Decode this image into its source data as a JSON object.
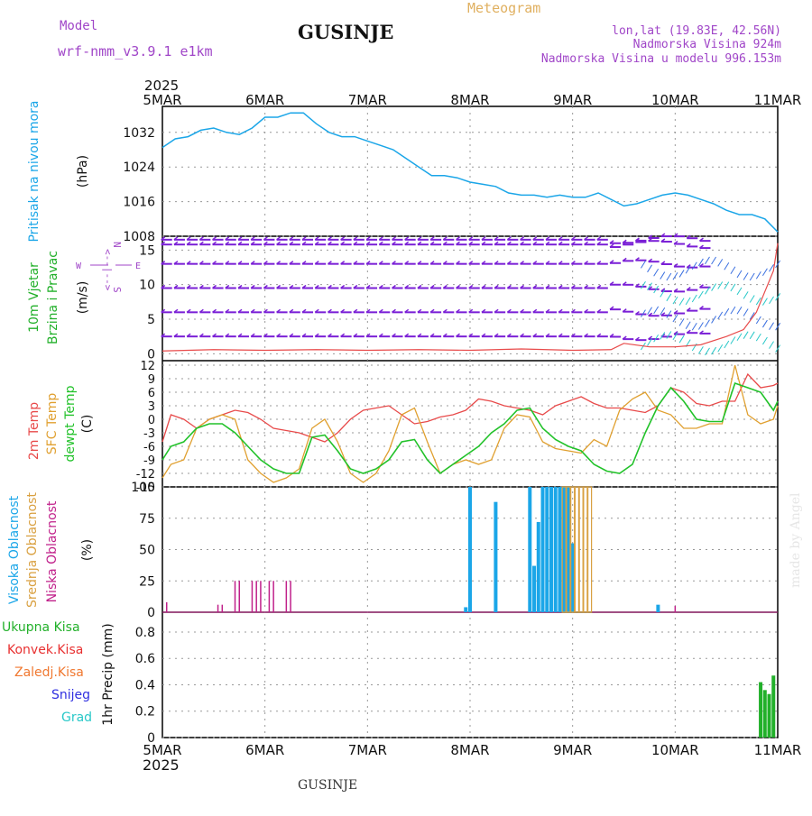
{
  "header": {
    "model_label": "Model",
    "model_name": "wrf-nmm_v3.9.1 e1km",
    "station_title": "GUSINJE",
    "app_title": "Meteogram",
    "location": "lon,lat (19.83E, 42.56N)",
    "elevation": "Nadmorska Visina 924m",
    "model_elevation": "Nadmorska Visina u modelu 996.153m"
  },
  "footer": {
    "station": "GUSINJE",
    "credit": "made by Angel"
  },
  "colors": {
    "pressure": "#1ba6e8",
    "wind_green": "#22b02a",
    "wind_dir": "#a046c8",
    "purple": "#7a1fd6",
    "temp2m": "#e84a4a",
    "sfc": "#e0a030",
    "dew": "#22c22a",
    "high_cloud": "#1ba6e8",
    "mid_cloud": "#d9a040",
    "low_cloud": "#c0208a",
    "grad": "#28c8c8",
    "snow": "#3030e0",
    "conv": "#e83030",
    "frozen": "#f07830"
  },
  "time_axis": {
    "year": "2025",
    "ticks": [
      "5MAR",
      "6MAR",
      "7MAR",
      "8MAR",
      "9MAR",
      "10MAR",
      "11MAR"
    ]
  },
  "panels": {
    "pressure": {
      "label": "Pritisak na nivou mora",
      "unit": "(hPa)",
      "ticks": [
        "1008",
        "1016",
        "1024",
        "1032"
      ]
    },
    "wind": {
      "label1": "10m Vjetar",
      "label2": "Brzina i Pravac",
      "unit": "(m/s)",
      "ticks": [
        "0",
        "5",
        "10",
        "15"
      ],
      "compass": {
        "n": "N",
        "s": "S",
        "w": "W",
        "e": "E",
        "arrows": "<--|-->"
      }
    },
    "temperature": {
      "label1": "2m Temp",
      "label2": "SFC Temp",
      "label3": "dewpt Temp",
      "unit": "(C)",
      "ticks": [
        "12",
        "9",
        "6",
        "3",
        "0",
        "-3",
        "-6",
        "-9",
        "-12",
        "-15"
      ]
    },
    "clouds": {
      "label1": "Visoka Oblacnost",
      "label2": "Srednja Oblacnost",
      "label3": "Niska Oblacnost",
      "unit": "(%)",
      "ticks": [
        "100",
        "75",
        "50",
        "25",
        "0"
      ]
    },
    "precip": {
      "labels": [
        "Ukupna Kisa",
        "Konvek.Kisa",
        "Zaledj.Kisa",
        "Snijeg",
        "Grad"
      ],
      "unit": "1hr Precip (mm)",
      "ticks": [
        "0.8",
        "0.6",
        "0.4",
        "0.2",
        "0"
      ]
    }
  },
  "chart_data": [
    {
      "type": "line",
      "title": "",
      "ylabel": "Pritisak na nivou mora (hPa)",
      "ylim": [
        1008,
        1038
      ],
      "x_unit": "hours since 5MAR 00",
      "series": [
        {
          "name": "Pritisak na nivou mora",
          "x": [
            0,
            3,
            6,
            9,
            12,
            15,
            18,
            21,
            24,
            27,
            30,
            33,
            36,
            39,
            42,
            45,
            48,
            51,
            54,
            57,
            60,
            63,
            66,
            69,
            72,
            75,
            78,
            81,
            84,
            87,
            90,
            93,
            96,
            99,
            102,
            105,
            108,
            111,
            114,
            117,
            120,
            123,
            126,
            129,
            132,
            135,
            138,
            141,
            144
          ],
          "values": [
            1028.5,
            1030.5,
            1031,
            1032.5,
            1033,
            1032,
            1031.5,
            1033,
            1035.5,
            1035.5,
            1036.5,
            1036.5,
            1034,
            1032,
            1031,
            1031,
            1030,
            1029,
            1028,
            1026,
            1024,
            1022,
            1022,
            1021.5,
            1020.5,
            1020,
            1019.5,
            1018,
            1017.5,
            1017.5,
            1017,
            1017.5,
            1017,
            1017,
            1018,
            1016.5,
            1015,
            1015.5,
            1016.5,
            1017.5,
            1018,
            1017.5,
            1016.5,
            1015.5,
            1014,
            1013,
            1013,
            1012,
            1009
          ]
        }
      ]
    },
    {
      "type": "line",
      "title": "",
      "ylabel": "10m Vjetar Brzina i Pravac (m/s)",
      "ylim": [
        -1,
        17
      ],
      "x_unit": "hours since 5MAR 00",
      "series": [
        {
          "name": "Brzina",
          "x": [
            0,
            12,
            24,
            36,
            48,
            60,
            72,
            84,
            96,
            105,
            108,
            114,
            120,
            126,
            132,
            136,
            139,
            141,
            143,
            144
          ],
          "values": [
            0.4,
            0.6,
            0.5,
            0.6,
            0.5,
            0.6,
            0.5,
            0.7,
            0.5,
            0.6,
            1.5,
            1.0,
            1.0,
            1.3,
            2.5,
            3.5,
            6,
            9,
            12,
            16
          ]
        }
      ]
    },
    {
      "type": "line",
      "title": "",
      "ylabel": "(C)",
      "ylim": [
        -15,
        13
      ],
      "x_unit": "hours since 5MAR 00",
      "series": [
        {
          "name": "2m Temp",
          "x": [
            0,
            2,
            5,
            8,
            11,
            14,
            17,
            20,
            23,
            26,
            29,
            32,
            35,
            38,
            41,
            44,
            47,
            50,
            53,
            56,
            59,
            62,
            65,
            68,
            71,
            74,
            77,
            80,
            83,
            86,
            89,
            92,
            95,
            98,
            101,
            104,
            107,
            110,
            113,
            116,
            119,
            122,
            125,
            128,
            131,
            134,
            137,
            140,
            143,
            144
          ],
          "values": [
            -5,
            1,
            0,
            -2,
            0,
            1,
            2,
            1.5,
            0,
            -2,
            -2.5,
            -3,
            -4,
            -5,
            -3,
            0,
            2,
            2.5,
            3,
            1,
            -1,
            -0.5,
            0.5,
            1,
            2,
            4.5,
            4,
            3,
            2.5,
            2,
            1,
            3,
            4,
            5,
            3.5,
            2.5,
            2.5,
            2,
            1.5,
            3,
            7,
            6,
            3.5,
            3,
            4,
            4,
            10,
            7,
            7.5,
            8
          ]
        },
        {
          "name": "SFC Temp",
          "x": [
            0,
            2,
            5,
            8,
            11,
            14,
            17,
            20,
            23,
            26,
            29,
            32,
            35,
            38,
            41,
            44,
            47,
            50,
            53,
            56,
            59,
            62,
            65,
            68,
            71,
            74,
            77,
            80,
            83,
            86,
            89,
            92,
            95,
            98,
            101,
            104,
            107,
            110,
            113,
            116,
            119,
            122,
            125,
            128,
            131,
            134,
            137,
            140,
            143,
            144
          ],
          "values": [
            -13,
            -10,
            -9,
            -2,
            0,
            1,
            0,
            -9,
            -12,
            -14,
            -13,
            -11,
            -2,
            0,
            -5,
            -12,
            -14,
            -12,
            -7,
            1,
            2.5,
            -5,
            -12,
            -10,
            -9,
            -10,
            -9,
            -2,
            1,
            0.5,
            -5,
            -6.5,
            -7,
            -7.5,
            -4.5,
            -6,
            2,
            4.5,
            6,
            2,
            1,
            -2,
            -2,
            -1,
            -1,
            12,
            1,
            -1,
            0,
            3
          ]
        },
        {
          "name": "dewpt Temp",
          "x": [
            0,
            2,
            5,
            8,
            11,
            14,
            17,
            20,
            23,
            26,
            29,
            32,
            35,
            38,
            41,
            44,
            47,
            50,
            53,
            56,
            59,
            62,
            65,
            68,
            71,
            74,
            77,
            80,
            83,
            86,
            89,
            92,
            95,
            98,
            101,
            104,
            107,
            110,
            113,
            116,
            119,
            122,
            125,
            128,
            131,
            134,
            137,
            140,
            143,
            144
          ],
          "values": [
            -9,
            -6,
            -5,
            -2,
            -1,
            -1,
            -3,
            -6,
            -9,
            -11,
            -12,
            -12,
            -4,
            -3.5,
            -7,
            -11,
            -12,
            -11,
            -9,
            -5,
            -4.5,
            -9,
            -12,
            -10,
            -8,
            -6,
            -3,
            -1,
            2,
            2.5,
            -2,
            -4.5,
            -6,
            -7,
            -10,
            -11.5,
            -12,
            -10,
            -3,
            3,
            7,
            4,
            0,
            -0.5,
            -0.5,
            8,
            7,
            6,
            2,
            4
          ]
        }
      ]
    },
    {
      "type": "bar",
      "title": "",
      "ylabel": "(%)",
      "ylim": [
        0,
        100
      ],
      "x_unit": "hours since 5MAR 00",
      "series": [
        {
          "name": "Visoka Oblacnost",
          "x": [
            71,
            72,
            78,
            86,
            87,
            88,
            89,
            90,
            91,
            92,
            93,
            94,
            95,
            96,
            116
          ],
          "values": [
            4,
            100,
            88,
            100,
            37,
            72,
            100,
            100,
            100,
            100,
            100,
            100,
            100,
            55,
            6
          ]
        },
        {
          "name": "Srednja Oblacnost",
          "x": [
            94,
            95,
            96,
            97,
            98,
            99,
            100
          ],
          "values": [
            100,
            100,
            100,
            100,
            100,
            100,
            100
          ]
        },
        {
          "name": "Niska Oblacnost",
          "x": [
            1,
            13,
            14,
            17,
            18,
            21,
            22,
            23,
            25,
            26,
            29,
            30,
            120
          ],
          "values": [
            8,
            6,
            6,
            25,
            25,
            25,
            25,
            25,
            25,
            25,
            25,
            25,
            5
          ]
        }
      ]
    },
    {
      "type": "bar",
      "title": "",
      "ylabel": "1hr Precip (mm)",
      "ylim": [
        0,
        0.95
      ],
      "x_unit": "hours since 5MAR 00",
      "series": [
        {
          "name": "Ukupna Kisa",
          "x": [
            140,
            141,
            142,
            143
          ],
          "values": [
            0.42,
            0.36,
            0.33,
            0.47
          ]
        }
      ]
    }
  ]
}
